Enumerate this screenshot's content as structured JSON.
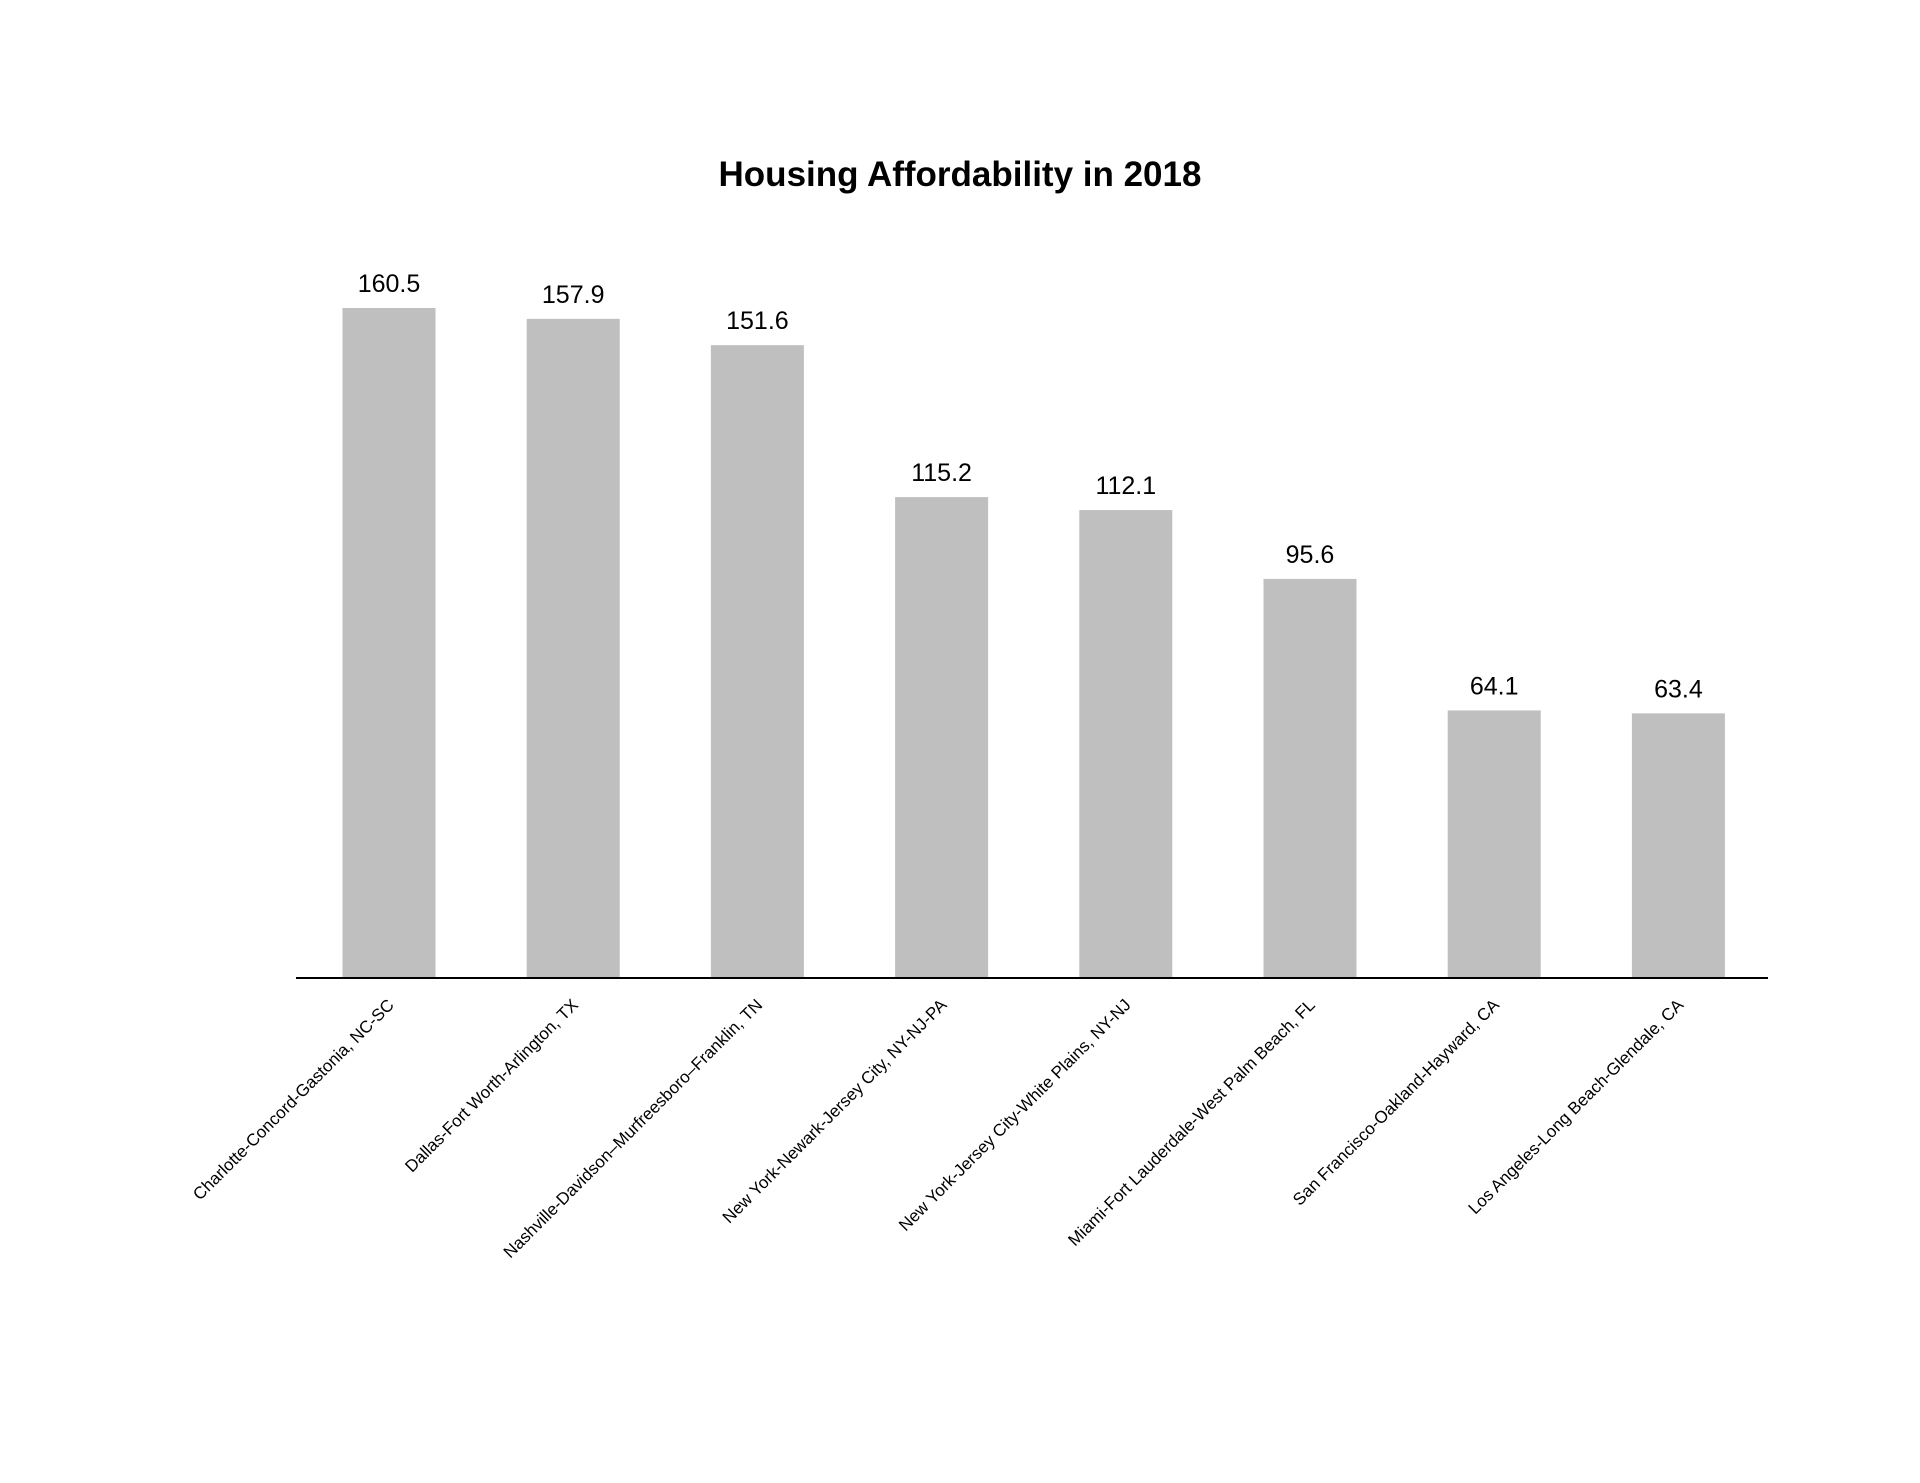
{
  "chart_data": {
    "type": "bar",
    "title": "Housing Affordability in 2018",
    "xlabel": "",
    "ylabel": "",
    "categories": [
      "Charlotte-Concord-Gastonia, NC-SC",
      "Dallas-Fort Worth-Arlington, TX",
      "Nashville-Davidson–Murfreesboro–Franklin, TN",
      "New York-Newark-Jersey City, NY-NJ-PA",
      "New York-Jersey City-White Plains, NY-NJ",
      "Miami-Fort Lauderdale-West Palm Beach, FL",
      "San Francisco-Oakland-Hayward, CA",
      "Los Angeles-Long Beach-Glendale, CA"
    ],
    "values": [
      160.5,
      157.9,
      151.6,
      115.2,
      112.1,
      95.6,
      64.1,
      63.4
    ],
    "value_labels": [
      "160.5",
      "157.9",
      "151.6",
      "115.2",
      "112.1",
      "95.6",
      "64.1",
      "63.4"
    ],
    "ylim": [
      0,
      160.5
    ],
    "grid": false,
    "legend": "none",
    "bar_color": "#bfbfbf",
    "axis_color": "#000000"
  }
}
